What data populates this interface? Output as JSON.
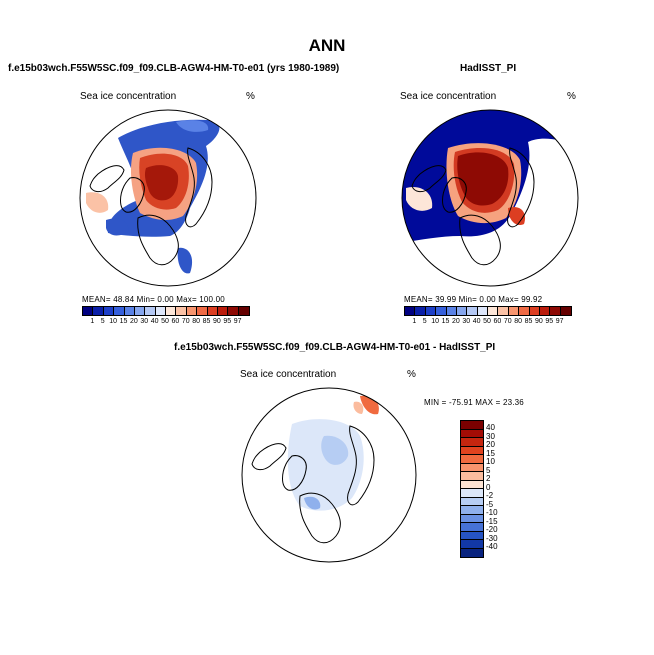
{
  "figure": {
    "title": "ANN"
  },
  "panels": {
    "model": {
      "title": "f.e15b03wch.F55W5SC.f09_f09.CLB-AGW4-HM-T0-e01 (yrs 1980-1989)",
      "field": "Sea ice concentration",
      "units": "%",
      "stats": "MEAN=   48.84   Min=     0.00   Max=  100.00"
    },
    "obs": {
      "title": "HadISST_PI",
      "field": "Sea ice concentration",
      "units": "%",
      "stats": "MEAN=   39.99   Min=     0.00   Max=   99.92"
    },
    "diff": {
      "title": "f.e15b03wch.F55W5SC.f09_f09.CLB-AGW4-HM-T0-e01 - HadISST_PI",
      "field": "Sea ice concentration",
      "units": "%",
      "stats": "MIN =  -75.91  MAX =   23.36"
    }
  },
  "colorbars": {
    "concentration": {
      "labels": [
        "1",
        "5",
        "10",
        "15",
        "20",
        "30",
        "40",
        "50",
        "60",
        "70",
        "80",
        "85",
        "90",
        "95",
        "97"
      ],
      "colors": [
        "#000080",
        "#0a1fa8",
        "#1d3fc8",
        "#3660dc",
        "#5a82e6",
        "#86a6ee",
        "#b4c8f4",
        "#dde6fa",
        "#fde6d8",
        "#fbc2a6",
        "#f7956f",
        "#ef6a45",
        "#dc3e22",
        "#bb1c0c",
        "#8e0a04",
        "#650000"
      ]
    },
    "difference": {
      "labels": [
        "40",
        "30",
        "20",
        "15",
        "10",
        "5",
        "2",
        "0",
        "-2",
        "-5",
        "-10",
        "-15",
        "-20",
        "-30",
        "-40"
      ],
      "colors": [
        "#7a0000",
        "#a30c05",
        "#c5260f",
        "#e0431f",
        "#f06a3f",
        "#f8946d",
        "#fbbc9e",
        "#fde3d3",
        "#dce7f9",
        "#b6cdf3",
        "#8fb0ec",
        "#6a91e3",
        "#4672d6",
        "#2654c3",
        "#1238a6",
        "#08237f"
      ]
    }
  }
}
